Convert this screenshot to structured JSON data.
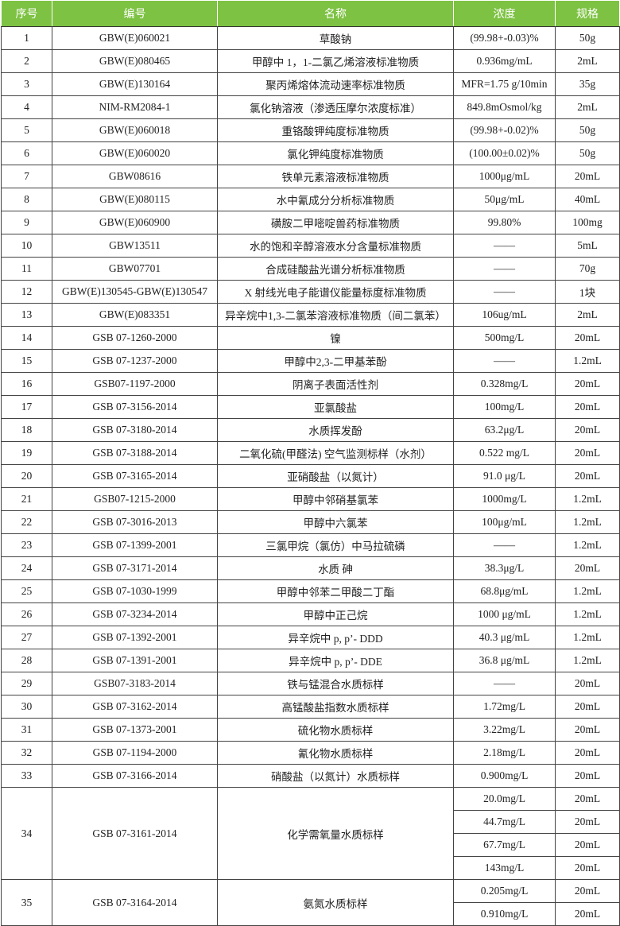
{
  "header": {
    "col1": "序号",
    "col2": "编号",
    "col3": "名称",
    "col4": "浓度",
    "col5": "规格"
  },
  "colors": {
    "header_bg": "#7dc242",
    "header_text": "#ffffff"
  },
  "rows": [
    {
      "no": "1",
      "code": "GBW(E)060021",
      "name": "草酸钠",
      "items": [
        {
          "conc": "(99.98+-0.03)%",
          "spec": "50g"
        }
      ]
    },
    {
      "no": "2",
      "code": "GBW(E)080465",
      "name": "甲醇中 1，1-二氯乙烯溶液标准物质",
      "items": [
        {
          "conc": "0.936mg/mL",
          "spec": "2mL"
        }
      ]
    },
    {
      "no": "3",
      "code": "GBW(E)130164",
      "name": "聚丙烯熔体流动速率标准物质",
      "items": [
        {
          "conc": "MFR=1.75 g/10min",
          "spec": "35g"
        }
      ]
    },
    {
      "no": "4",
      "code": "NIM-RM2084-1",
      "name": "氯化钠溶液（渗透压摩尔浓度标准）",
      "items": [
        {
          "conc": "849.8mOsmol/kg",
          "spec": "2mL"
        }
      ]
    },
    {
      "no": "5",
      "code": "GBW(E)060018",
      "name": "重铬酸钾纯度标准物质",
      "items": [
        {
          "conc": "(99.98+-0.02)%",
          "spec": "50g"
        }
      ]
    },
    {
      "no": "6",
      "code": "GBW(E)060020",
      "name": "氯化钾纯度标准物质",
      "items": [
        {
          "conc": "(100.00±0.02)%",
          "spec": "50g"
        }
      ]
    },
    {
      "no": "7",
      "code": "GBW08616",
      "name": "铁单元素溶液标准物质",
      "items": [
        {
          "conc": "1000μg/mL",
          "spec": "20mL"
        }
      ]
    },
    {
      "no": "8",
      "code": "GBW(E)080115",
      "name": "水中氰成分分析标准物质",
      "items": [
        {
          "conc": "50μg/mL",
          "spec": "40mL"
        }
      ]
    },
    {
      "no": "9",
      "code": "GBW(E)060900",
      "name": "磺胺二甲嘧啶兽药标准物质",
      "items": [
        {
          "conc": "99.80%",
          "spec": "100mg"
        }
      ]
    },
    {
      "no": "10",
      "code": "GBW13511",
      "name": "水的饱和辛醇溶液水分含量标准物质",
      "items": [
        {
          "conc": "——",
          "spec": "5mL"
        }
      ]
    },
    {
      "no": "11",
      "code": "GBW07701",
      "name": "合成硅酸盐光谱分析标准物质",
      "items": [
        {
          "conc": "——",
          "spec": "70g"
        }
      ]
    },
    {
      "no": "12",
      "code": "GBW(E)130545-GBW(E)130547",
      "name": "X 射线光电子能谱仪能量标度标准物质",
      "items": [
        {
          "conc": "——",
          "spec": "1块"
        }
      ]
    },
    {
      "no": "13",
      "code": "GBW(E)083351",
      "name": "异辛烷中1,3-二氯苯溶液标准物质（间二氯苯）",
      "items": [
        {
          "conc": "106ug/mL",
          "spec": "2mL"
        }
      ]
    },
    {
      "no": "14",
      "code": "GSB 07-1260-2000",
      "name": "镍",
      "items": [
        {
          "conc": "500mg/L",
          "spec": "20mL"
        }
      ]
    },
    {
      "no": "15",
      "code": "GSB 07-1237-2000",
      "name": "甲醇中2,3-二甲基苯酚",
      "items": [
        {
          "conc": "——",
          "spec": "1.2mL"
        }
      ]
    },
    {
      "no": "16",
      "code": "GSB07-1197-2000",
      "name": "阴离子表面活性剂",
      "items": [
        {
          "conc": "0.328mg/L",
          "spec": "20mL"
        }
      ]
    },
    {
      "no": "17",
      "code": "GSB 07-3156-2014",
      "name": "亚氯酸盐",
      "items": [
        {
          "conc": "100mg/L",
          "spec": "20mL"
        }
      ]
    },
    {
      "no": "18",
      "code": "GSB 07-3180-2014",
      "name": "水质挥发酚",
      "items": [
        {
          "conc": "63.2μg/L",
          "spec": "20mL"
        }
      ]
    },
    {
      "no": "19",
      "code": "GSB 07-3188-2014",
      "name": "二氧化硫(甲醛法) 空气监测标样（水剂）",
      "items": [
        {
          "conc": "0.522 mg/L",
          "spec": "20mL"
        }
      ]
    },
    {
      "no": "20",
      "code": "GSB 07-3165-2014",
      "name": "亚硝酸盐（以氮计）",
      "items": [
        {
          "conc": "91.0 μg/L",
          "spec": "20mL"
        }
      ]
    },
    {
      "no": "21",
      "code": "GSB07-1215-2000",
      "name": "甲醇中邻硝基氯苯",
      "items": [
        {
          "conc": "1000mg/L",
          "spec": "1.2mL"
        }
      ]
    },
    {
      "no": "22",
      "code": "GSB 07-3016-2013",
      "name": "甲醇中六氯苯",
      "items": [
        {
          "conc": "100μg/mL",
          "spec": "1.2mL"
        }
      ]
    },
    {
      "no": "23",
      "code": "GSB 07-1399-2001",
      "name": "三氯甲烷（氯仿）中马拉硫磷",
      "items": [
        {
          "conc": "——",
          "spec": "1.2mL"
        }
      ]
    },
    {
      "no": "24",
      "code": "GSB 07-3171-2014",
      "name": "水质 砷",
      "items": [
        {
          "conc": "38.3μg/L",
          "spec": "20mL"
        }
      ]
    },
    {
      "no": "25",
      "code": "GSB 07-1030-1999",
      "name": "甲醇中邻苯二甲酸二丁酯",
      "items": [
        {
          "conc": "68.8μg/mL",
          "spec": "1.2mL"
        }
      ]
    },
    {
      "no": "26",
      "code": "GSB 07-3234-2014",
      "name": "甲醇中正己烷",
      "items": [
        {
          "conc": "1000 μg/mL",
          "spec": "1.2mL"
        }
      ]
    },
    {
      "no": "27",
      "code": "GSB 07-1392-2001",
      "name": "异辛烷中 p, p’- DDD",
      "items": [
        {
          "conc": "40.3 μg/mL",
          "spec": "1.2mL"
        }
      ]
    },
    {
      "no": "28",
      "code": "GSB 07-1391-2001",
      "name": "异辛烷中 p, p’- DDE",
      "items": [
        {
          "conc": "36.8 μg/mL",
          "spec": "1.2mL"
        }
      ]
    },
    {
      "no": "29",
      "code": "GSB07-3183-2014",
      "name": "铁与锰混合水质标样",
      "items": [
        {
          "conc": "——",
          "spec": "20mL"
        }
      ]
    },
    {
      "no": "30",
      "code": "GSB 07-3162-2014",
      "name": "高锰酸盐指数水质标样",
      "items": [
        {
          "conc": "1.72mg/L",
          "spec": "20mL"
        }
      ]
    },
    {
      "no": "31",
      "code": "GSB 07-1373-2001",
      "name": "硫化物水质标样",
      "items": [
        {
          "conc": "3.22mg/L",
          "spec": "20mL"
        }
      ]
    },
    {
      "no": "32",
      "code": "GSB 07-1194-2000",
      "name": "氰化物水质标样",
      "items": [
        {
          "conc": "2.18mg/L",
          "spec": "20mL"
        }
      ]
    },
    {
      "no": "33",
      "code": "GSB 07-3166-2014",
      "name": "硝酸盐（以氮计）水质标样",
      "items": [
        {
          "conc": "0.900mg/L",
          "spec": "20mL"
        }
      ]
    },
    {
      "no": "34",
      "code": "GSB 07-3161-2014",
      "name": "化学需氧量水质标样",
      "items": [
        {
          "conc": "20.0mg/L",
          "spec": "20mL"
        },
        {
          "conc": "44.7mg/L",
          "spec": "20mL"
        },
        {
          "conc": "67.7mg/L",
          "spec": "20mL"
        },
        {
          "conc": "143mg/L",
          "spec": "20mL"
        }
      ]
    },
    {
      "no": "35",
      "code": "GSB 07-3164-2014",
      "name": "氨氮水质标样",
      "items": [
        {
          "conc": "0.205mg/L",
          "spec": "20mL"
        },
        {
          "conc": "0.910mg/L",
          "spec": "20mL"
        }
      ]
    }
  ]
}
